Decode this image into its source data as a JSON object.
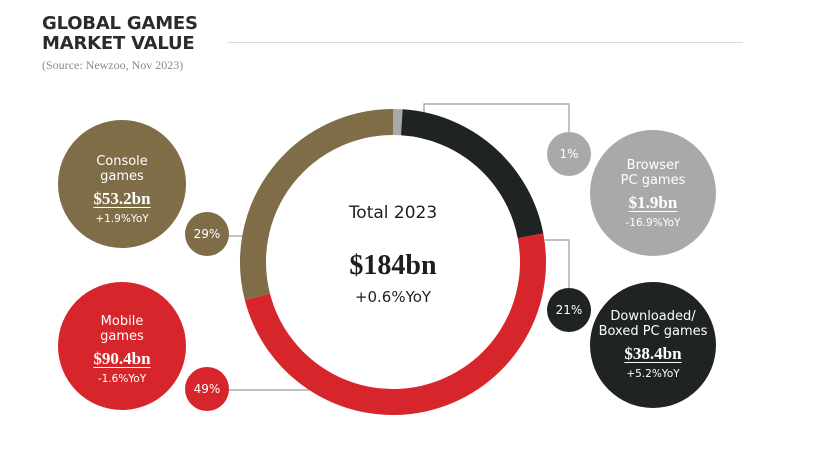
{
  "header": {
    "title_line1": "GLOBAL GAMES",
    "title_line2": "MARKET VALUE",
    "source": "(Source: Newzoo, Nov 2023)"
  },
  "center": {
    "label": "Total 2023",
    "value": "$184bn",
    "yoy": "+0.6%YoY"
  },
  "colors": {
    "console": "#7f6d48",
    "mobile": "#d7262b",
    "browser": "#a9a9a9",
    "downloaded": "#1f2322"
  },
  "chart_data": {
    "type": "pie",
    "variant": "donut",
    "total": "$184bn",
    "total_yoy": "+0.6%YoY",
    "segments": [
      {
        "key": "browser",
        "name_line1": "Browser",
        "name_line2": "PC games",
        "value_bn": 1.9,
        "value_label": "$1.9bn",
        "share": 1,
        "share_label": "1%",
        "yoy": "-16.9%YoY",
        "color": "#a9a9a9"
      },
      {
        "key": "downloaded",
        "name_line1": "Downloaded/",
        "name_line2": "Boxed PC games",
        "value_bn": 38.4,
        "value_label": "$38.4bn",
        "share": 21,
        "share_label": "21%",
        "yoy": "+5.2%YoY",
        "color": "#1f2322"
      },
      {
        "key": "mobile",
        "name_line1": "Mobile",
        "name_line2": "games",
        "value_bn": 90.4,
        "value_label": "$90.4bn",
        "share": 49,
        "share_label": "49%",
        "yoy": "-1.6%YoY",
        "color": "#d7262b"
      },
      {
        "key": "console",
        "name_line1": "Console",
        "name_line2": "games",
        "value_bn": 53.2,
        "value_label": "$53.2bn",
        "share": 29,
        "share_label": "29%",
        "yoy": "+1.9%YoY",
        "color": "#7f6d48"
      }
    ]
  }
}
